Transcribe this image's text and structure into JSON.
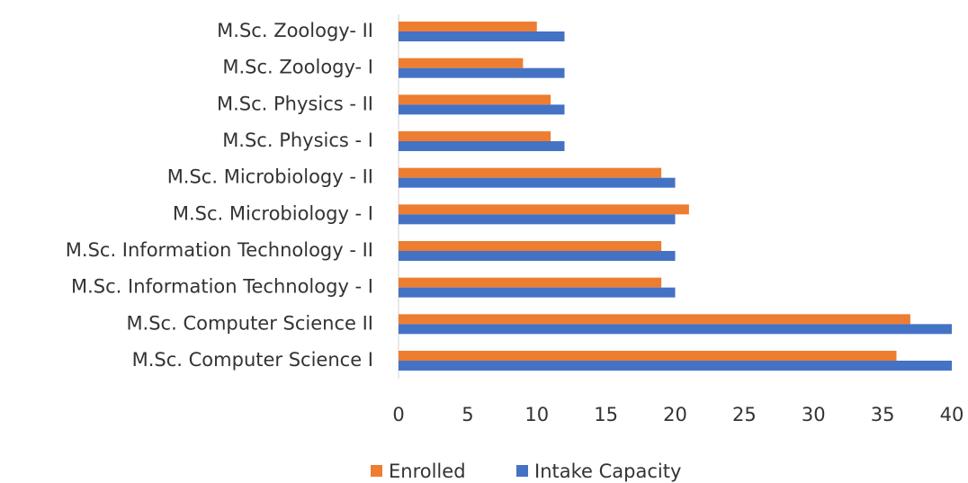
{
  "chart_data": {
    "type": "bar",
    "orientation": "horizontal",
    "categories": [
      "M.Sc. Computer Science I",
      "M.Sc. Computer Science II",
      "M.Sc. Information Technology - I",
      "M.Sc. Information Technology - II",
      "M.Sc. Microbiology - I",
      "M.Sc. Microbiology - II",
      "M.Sc. Physics - I",
      "M.Sc. Physics - II",
      "M.Sc. Zoology- I",
      "M.Sc. Zoology- II"
    ],
    "series": [
      {
        "name": "Enrolled",
        "color": "#ed7d31",
        "values": [
          36,
          37,
          19,
          19,
          21,
          19,
          11,
          11,
          9,
          10
        ]
      },
      {
        "name": "Intake Capacity",
        "color": "#4472c4",
        "values": [
          40,
          40,
          20,
          20,
          20,
          20,
          12,
          12,
          12,
          12
        ]
      }
    ],
    "xlim": [
      0,
      40
    ],
    "xticks": [
      0,
      5,
      10,
      15,
      20,
      25,
      30,
      35,
      40
    ],
    "grid": false,
    "legend": "bottom"
  }
}
